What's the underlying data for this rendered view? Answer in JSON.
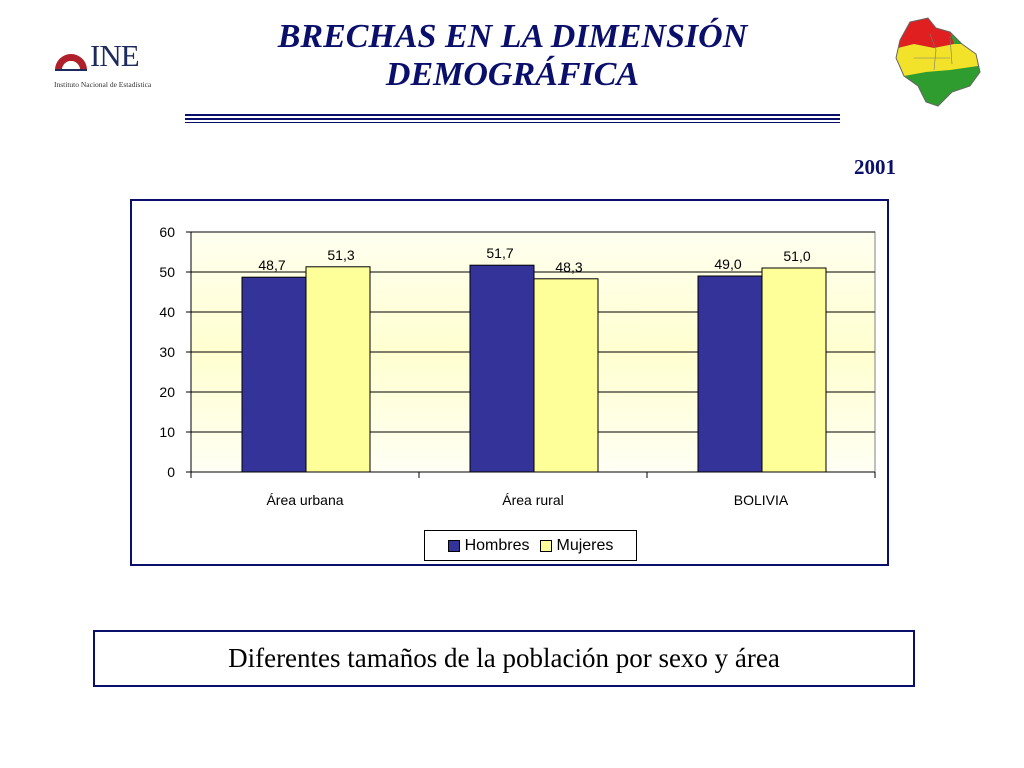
{
  "logo": {
    "name": "INE",
    "subtitle": "Instituto Nacional de Estadística"
  },
  "header": {
    "title_line1": "BRECHAS EN LA DIMENSIÓN",
    "title_line2": "DEMOGRÁFICA",
    "year": "2001"
  },
  "colors": {
    "hombres": "#333399",
    "mujeres": "#ffff99",
    "plot_bg": "#ffffd6",
    "frame": "#0a0f6b"
  },
  "chart_data": {
    "type": "bar",
    "categories": [
      "Área urbana",
      "Área rural",
      "BOLIVIA"
    ],
    "series": [
      {
        "name": "Hombres",
        "values": [
          48.7,
          51.7,
          49.0
        ],
        "labels": [
          "48,7",
          "51,7",
          "49,0"
        ]
      },
      {
        "name": "Mujeres",
        "values": [
          51.3,
          48.3,
          51.0
        ],
        "labels": [
          "51,3",
          "48,3",
          "51,0"
        ]
      }
    ],
    "ylim": [
      0,
      60
    ],
    "yticks": [
      0,
      10,
      20,
      30,
      40,
      50,
      60
    ],
    "grid": true,
    "legend_position": "bottom-center"
  },
  "caption": "Diferentes tamaños de la población por sexo y área"
}
